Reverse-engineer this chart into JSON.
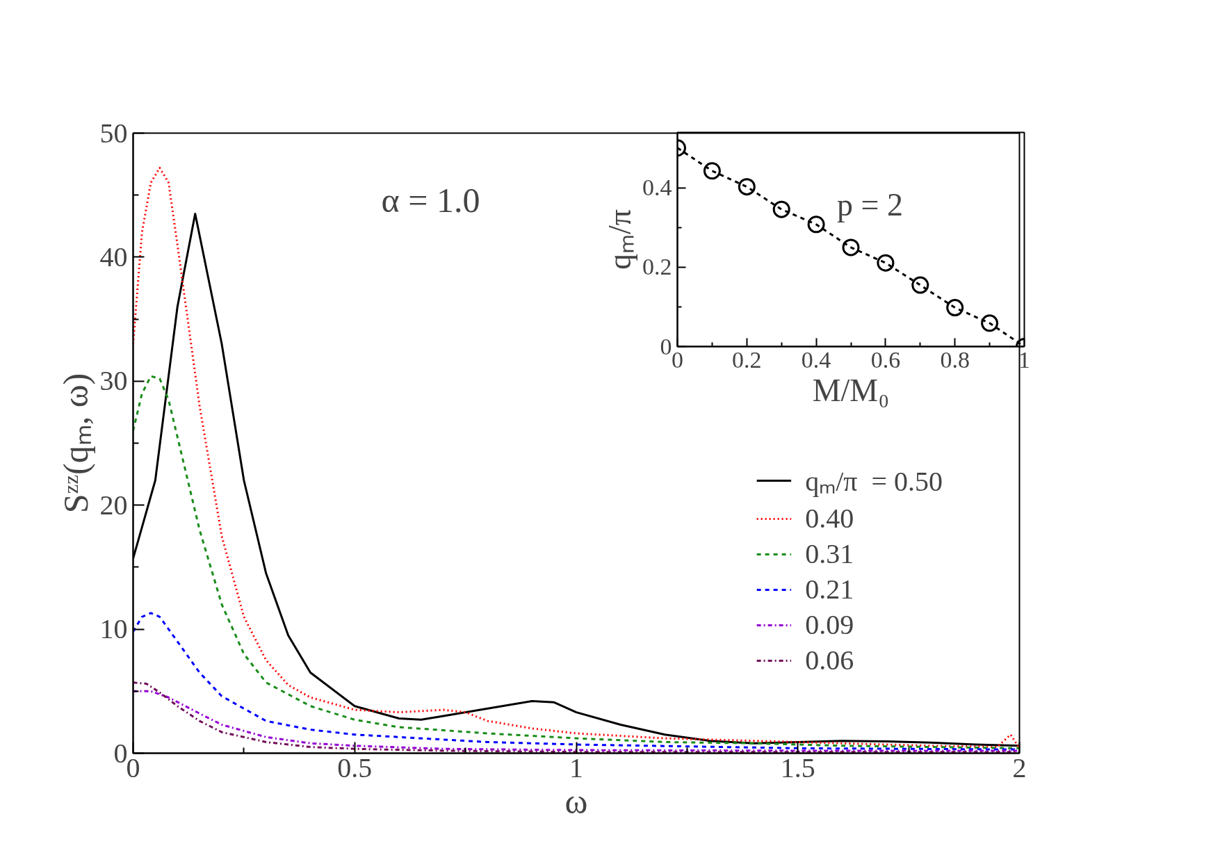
{
  "chart_data": [
    {
      "type": "line",
      "xlabel": "ω",
      "ylabel": "Sᶻᶻ(qₘ, ω)",
      "annotations": [
        "α = 1.0"
      ],
      "xlim": [
        0,
        2
      ],
      "ylim": [
        0,
        50
      ],
      "xticks": [
        0,
        {
          "value": 0.25,
          "label": null
        },
        0.5,
        {
          "value": 0.75,
          "label": null
        },
        1,
        {
          "value": 1.25,
          "label": null
        },
        1.5,
        {
          "value": 1.75,
          "label": null
        },
        2
      ],
      "yticks": [
        0,
        {
          "value": 5,
          "label": null
        },
        10,
        {
          "value": 15,
          "label": null
        },
        20,
        {
          "value": 25,
          "label": null
        },
        30,
        {
          "value": 35,
          "label": null
        },
        40,
        {
          "value": 45,
          "label": null
        },
        50
      ],
      "grid": false,
      "legend": "bottom right",
      "series": [
        {
          "name": "qₘ/π  = 0.50",
          "color": "#000000",
          "line_style": "solid",
          "x": [
            0,
            0.05,
            0.1,
            0.14,
            0.2,
            0.25,
            0.3,
            0.35,
            0.4,
            0.5,
            0.6,
            0.65,
            0.7,
            0.8,
            0.9,
            0.95,
            1.0,
            1.1,
            1.2,
            1.3,
            1.4,
            1.5,
            1.6,
            1.7,
            1.8,
            1.9,
            2.0
          ],
          "values": [
            15.7,
            22,
            36,
            43.5,
            33,
            22,
            14.5,
            9.5,
            6.5,
            3.8,
            2.8,
            2.7,
            3.0,
            3.6,
            4.2,
            4.1,
            3.3,
            2.3,
            1.5,
            1.0,
            0.8,
            0.9,
            1.0,
            0.95,
            0.85,
            0.7,
            0.6
          ]
        },
        {
          "name": "0.40",
          "color": "#ff0000",
          "line_style": "dotted",
          "x": [
            0,
            0.02,
            0.04,
            0.06,
            0.08,
            0.1,
            0.15,
            0.2,
            0.25,
            0.3,
            0.35,
            0.4,
            0.5,
            0.6,
            0.7,
            0.75,
            0.8,
            0.9,
            1.0,
            1.2,
            1.4,
            1.6,
            1.8,
            1.95,
            1.98,
            2.0
          ],
          "values": [
            33,
            42,
            46,
            47.2,
            46,
            41,
            28,
            17.5,
            11,
            7.5,
            5.5,
            4.5,
            3.5,
            3.3,
            3.5,
            3.3,
            2.6,
            2.0,
            1.6,
            1.2,
            1.0,
            0.8,
            0.6,
            0.5,
            1.5,
            0.4
          ]
        },
        {
          "name": "0.31",
          "color": "#1a8c1a",
          "line_style": "dashed",
          "x": [
            0,
            0.02,
            0.04,
            0.06,
            0.08,
            0.1,
            0.15,
            0.2,
            0.25,
            0.3,
            0.4,
            0.5,
            0.6,
            0.8,
            1.0,
            1.2,
            1.4,
            1.6,
            1.8,
            2.0
          ],
          "values": [
            26,
            29,
            30.4,
            30.2,
            28.5,
            25.5,
            18,
            12,
            8,
            5.7,
            3.8,
            2.7,
            2.1,
            1.6,
            1.2,
            0.9,
            0.8,
            0.6,
            0.5,
            0.4
          ]
        },
        {
          "name": "0.21",
          "color": "#0000ff",
          "line_style": "dashed",
          "x": [
            0,
            0.02,
            0.04,
            0.06,
            0.1,
            0.15,
            0.2,
            0.3,
            0.4,
            0.5,
            0.6,
            0.8,
            1.0,
            1.5,
            2.0
          ],
          "values": [
            9.8,
            11,
            11.3,
            11,
            9,
            6.5,
            4.6,
            2.6,
            1.9,
            1.5,
            1.3,
            0.9,
            0.7,
            0.4,
            0.3
          ]
        },
        {
          "name": "0.09",
          "color": "#9400d3",
          "line_style": "dashdot",
          "x": [
            0,
            0.04,
            0.08,
            0.15,
            0.2,
            0.3,
            0.4,
            0.5,
            0.7,
            1.0,
            1.5,
            2.0
          ],
          "values": [
            5.0,
            5.0,
            4.5,
            3.2,
            2.3,
            1.3,
            0.8,
            0.6,
            0.35,
            0.25,
            0.2,
            0.2
          ]
        },
        {
          "name": "0.06",
          "color": "#720e5a",
          "line_style": "dashdot",
          "x": [
            0,
            0.03,
            0.06,
            0.1,
            0.15,
            0.2,
            0.3,
            0.4,
            0.5,
            0.7,
            1.0,
            1.5,
            2.0
          ],
          "values": [
            5.7,
            5.6,
            4.9,
            3.8,
            2.6,
            1.7,
            0.9,
            0.5,
            0.35,
            0.2,
            0.1,
            0.1,
            0.1
          ]
        }
      ]
    },
    {
      "type": "line",
      "xlabel": "M/M₀",
      "ylabel": "qₘ/π",
      "annotations": [
        "p = 2"
      ],
      "xlim": [
        0,
        1
      ],
      "ylim": [
        0,
        0.54
      ],
      "xticks": [
        0,
        {
          "value": 0.1,
          "label": null
        },
        0.2,
        {
          "value": 0.3,
          "label": null
        },
        0.4,
        {
          "value": 0.5,
          "label": null
        },
        0.6,
        {
          "value": 0.7,
          "label": null
        },
        0.8,
        {
          "value": 0.9,
          "label": null
        },
        1
      ],
      "yticks": [
        0,
        {
          "value": 0.1,
          "label": null
        },
        0.2,
        {
          "value": 0.3,
          "label": null
        },
        0.4
      ],
      "grid": false,
      "legend": false,
      "marker": "circle",
      "line_style": "dashed",
      "series": [
        {
          "color": "#000000",
          "x": [
            0,
            0.1,
            0.2,
            0.3,
            0.4,
            0.5,
            0.6,
            0.7,
            0.8,
            0.9,
            1.0
          ],
          "values": [
            0.501,
            0.443,
            0.403,
            0.346,
            0.308,
            0.25,
            0.211,
            0.155,
            0.098,
            0.059,
            0
          ]
        }
      ]
    }
  ]
}
